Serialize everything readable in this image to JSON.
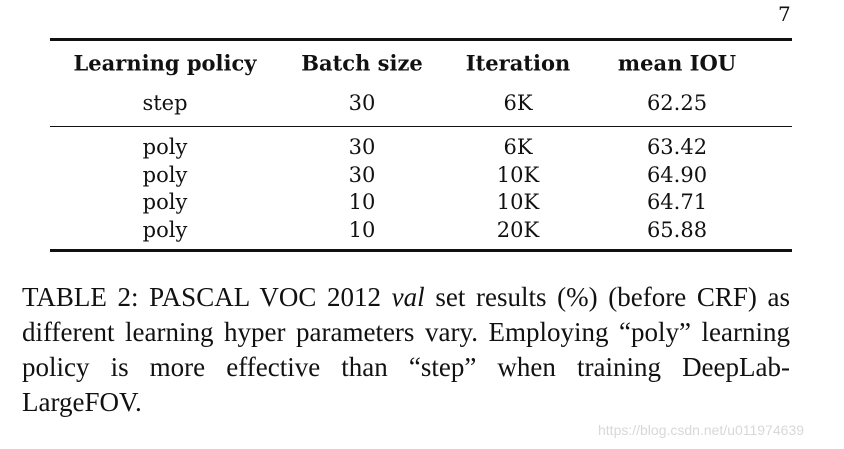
{
  "page_number": "7",
  "table": {
    "header": [
      "Learning policy",
      "Batch size",
      "Iteration",
      "mean IOU"
    ],
    "groups": [
      [
        [
          "step",
          "30",
          "6K",
          "62.25"
        ]
      ],
      [
        [
          "poly",
          "30",
          "6K",
          "63.42"
        ],
        [
          "poly",
          "30",
          "10K",
          "64.90"
        ],
        [
          "poly",
          "10",
          "10K",
          "64.71"
        ],
        [
          "poly",
          "10",
          "20K",
          "65.88"
        ]
      ]
    ]
  },
  "caption": {
    "label": "TABLE 2:",
    "text_before": "PASCAL VOC 2012",
    "emphasis": "val",
    "text_after": "set results (%) (before CRF) as different learning hyper parameters vary. Employing “poly” learning policy is more effective than “step” when training DeepLab-LargeFOV."
  },
  "watermark": "https://blog.csdn.net/u011974639"
}
